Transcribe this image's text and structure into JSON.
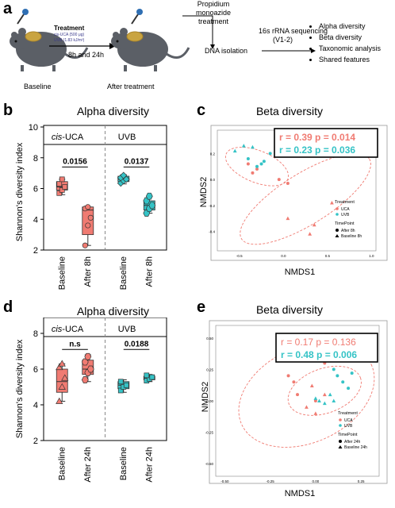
{
  "panel_a": {
    "letter": "a",
    "treatment_title": "Treatment",
    "treatment_line1": "cis-UCA (500 μg)",
    "treatment_line2": "UVB (1.83 kJ/m²)",
    "times": "8h and 24h",
    "baseline": "Baseline",
    "after": "After treatment",
    "pma_line1": "Propidium",
    "pma_line2": "monoazide",
    "pma_line3": "treatment",
    "dna": "DNA isolation",
    "seq_line1": "16s rRNA sequencing",
    "seq_line2": "(V1-2)",
    "outputs": [
      "Alpha diversity",
      "Beta diversity",
      "Taxonomic analysis",
      "Shared features"
    ]
  },
  "panel_b": {
    "letter": "b",
    "title": "Alpha diversity",
    "ylabel": "Shannon's diversity index",
    "group1": "cis-UCA",
    "group1_italic": "cis",
    "group1_rest": "-UCA",
    "group2": "UVB",
    "xticks": [
      "Baseline",
      "After 8h",
      "Baseline",
      "After 8h"
    ],
    "pvalues": [
      "0.0156",
      "0.0137"
    ],
    "colors": {
      "uca": "#f07b72",
      "uvb": "#35c3c6"
    }
  },
  "panel_c": {
    "letter": "c",
    "title": "Beta diversity",
    "xlabel": "NMDS1",
    "ylabel": "NMDS2",
    "stat1": "r = 0.39  p = 0.014",
    "stat2": "r = 0.23  p = 0.036",
    "legend_treatment": "Treatment",
    "legend_uca": "UCA",
    "legend_uvb": "UVB",
    "legend_timepoint": "TimePoint",
    "legend_after": "After 8h",
    "legend_baseline": "Baseline 8h"
  },
  "panel_d": {
    "letter": "d",
    "title": "Alpha diversity",
    "ylabel": "Shannon's diversity index",
    "group1_italic": "cis",
    "group1_rest": "-UCA",
    "group2": "UVB",
    "xticks": [
      "Baseline",
      "After 24h",
      "Baseline",
      "After 24h"
    ],
    "pvalues": [
      "n.s",
      "0.0188"
    ]
  },
  "panel_e": {
    "letter": "e",
    "title": "Beta diversity",
    "xlabel": "NMDS1",
    "ylabel": "NMDS2",
    "stat1": "r = 0.17  p = 0.136",
    "stat2": "r = 0.48  p = 0.006",
    "legend_treatment": "Treatment",
    "legend_uca": "UCA",
    "legend_uvb": "UVB",
    "legend_timepoint": "TimePoint",
    "legend_after": "After 24h",
    "legend_baseline": "Baseline 24h"
  },
  "chart_data": [
    {
      "type": "box",
      "title": "Alpha diversity",
      "ylabel": "Shannon's diversity index",
      "ylim": [
        2,
        10
      ],
      "yticks": [
        2,
        4,
        6,
        8,
        10
      ],
      "categories": [
        "Baseline",
        "After 8h",
        "Baseline",
        "After 8h"
      ],
      "groups": [
        "cis-UCA",
        "cis-UCA",
        "UVB",
        "UVB"
      ],
      "series": [
        {
          "box": {
            "min": 5.6,
            "q1": 5.9,
            "median": 6.1,
            "q3": 6.45,
            "max": 6.6
          },
          "points": [
            5.7,
            5.9,
            6.1,
            6.3,
            6.6
          ]
        },
        {
          "box": {
            "min": 2.3,
            "q1": 3.0,
            "median": 4.6,
            "q3": 4.8,
            "max": 4.8
          },
          "points": [
            2.3,
            3.6,
            4.1,
            4.7,
            4.8
          ]
        },
        {
          "box": {
            "min": 6.3,
            "q1": 6.45,
            "median": 6.6,
            "q3": 6.8,
            "max": 6.9
          },
          "points": [
            6.35,
            6.5,
            6.6,
            6.7,
            6.85
          ]
        },
        {
          "box": {
            "min": 4.4,
            "q1": 4.6,
            "median": 4.9,
            "q3": 5.2,
            "max": 5.5
          },
          "points": [
            4.4,
            4.7,
            4.9,
            5.2,
            5.5
          ]
        }
      ],
      "comparisons": [
        "0.0156",
        "0.0137"
      ]
    },
    {
      "type": "scatter",
      "title": "Beta diversity",
      "xlabel": "NMDS1",
      "ylabel": "NMDS2",
      "xticks": [
        "-0.5",
        "0.0",
        "0.5",
        "1.0"
      ],
      "yticks": [
        "0.2",
        "0.0",
        "-0.2",
        "-0.4"
      ],
      "xlim": [
        -0.75,
        1.05
      ],
      "ylim": [
        -0.55,
        0.38
      ],
      "series": [
        {
          "name": "UCA After 8h",
          "x": [
            -0.4,
            -0.3,
            -0.35,
            -0.05,
            0.05
          ],
          "y": [
            0.12,
            0.08,
            0.05,
            0.0,
            -0.03
          ]
        },
        {
          "name": "UCA Baseline 8h",
          "x": [
            0.05,
            0.3,
            0.55,
            0.35
          ],
          "y": [
            -0.3,
            -0.42,
            -0.18,
            -0.35
          ]
        },
        {
          "name": "UVB After 8h",
          "x": [
            -0.4,
            -0.3,
            -0.25,
            -0.22,
            -0.15
          ],
          "y": [
            0.16,
            0.1,
            0.12,
            0.14,
            0.2
          ]
        },
        {
          "name": "UVB Baseline 8h",
          "x": [
            -0.55,
            -0.35,
            -0.45,
            0.2,
            0.35
          ],
          "y": [
            0.22,
            0.25,
            0.26,
            0.2,
            0.2
          ]
        }
      ],
      "annotations": [
        "r = 0.39  p = 0.014",
        "r = 0.23  p = 0.036"
      ]
    },
    {
      "type": "box",
      "title": "Alpha diversity",
      "ylabel": "Shannon's diversity index",
      "ylim": [
        2,
        10
      ],
      "yticks": [
        2,
        4,
        6,
        8
      ],
      "categories": [
        "Baseline",
        "After 24h",
        "Baseline",
        "After 24h"
      ],
      "groups": [
        "cis-UCA",
        "cis-UCA",
        "UVB",
        "UVB"
      ],
      "series": [
        {
          "box": {
            "min": 4.2,
            "q1": 4.7,
            "median": 5.3,
            "q3": 6.0,
            "max": 6.3
          },
          "points": [
            4.2,
            5.0,
            5.5,
            6.1,
            6.3
          ]
        },
        {
          "box": {
            "min": 5.3,
            "q1": 5.7,
            "median": 6.0,
            "q3": 6.5,
            "max": 6.8
          },
          "points": [
            5.4,
            5.8,
            6.0,
            6.4,
            6.7
          ]
        },
        {
          "box": {
            "min": 4.7,
            "q1": 4.9,
            "median": 5.1,
            "q3": 5.3,
            "max": 5.4
          },
          "points": [
            4.8,
            5.0,
            5.1,
            5.3
          ]
        },
        {
          "box": {
            "min": 5.3,
            "q1": 5.4,
            "median": 5.5,
            "q3": 5.6,
            "max": 5.7
          },
          "points": [
            5.35,
            5.45,
            5.55,
            5.65
          ]
        }
      ],
      "comparisons": [
        "n.s",
        "0.0188"
      ]
    },
    {
      "type": "scatter",
      "title": "Beta diversity",
      "xlabel": "NMDS1",
      "ylabel": "NMDS2",
      "xticks": [
        "-0.50",
        "-0.25",
        "0.00",
        "0.25"
      ],
      "yticks": [
        "0.50",
        "0.25",
        "0.00",
        "-0.25",
        "-0.50"
      ],
      "xlim": [
        -0.55,
        0.35
      ],
      "ylim": [
        -0.6,
        0.6
      ],
      "series": [
        {
          "name": "UCA After 24h",
          "x": [
            -0.15,
            -0.12,
            -0.1,
            0.0,
            0.05
          ],
          "y": [
            0.2,
            0.15,
            0.05,
            0.0,
            0.3
          ]
        },
        {
          "name": "UCA Baseline 24h",
          "x": [
            -0.05,
            0.0,
            0.05,
            -0.02
          ],
          "y": [
            -0.05,
            -0.1,
            0.05,
            0.12
          ]
        },
        {
          "name": "UVB After 24h",
          "x": [
            0.1,
            0.12,
            0.15,
            0.18,
            0.2
          ],
          "y": [
            0.25,
            0.2,
            0.15,
            0.1,
            0.22
          ]
        },
        {
          "name": "UVB Baseline 24h",
          "x": [
            0.02,
            0.05,
            0.08,
            0.1,
            0.0
          ],
          "y": [
            0.0,
            -0.02,
            0.05,
            0.0,
            0.02
          ]
        }
      ],
      "annotations": [
        "r = 0.17  p = 0.136",
        "r = 0.48  p = 0.006"
      ]
    }
  ]
}
